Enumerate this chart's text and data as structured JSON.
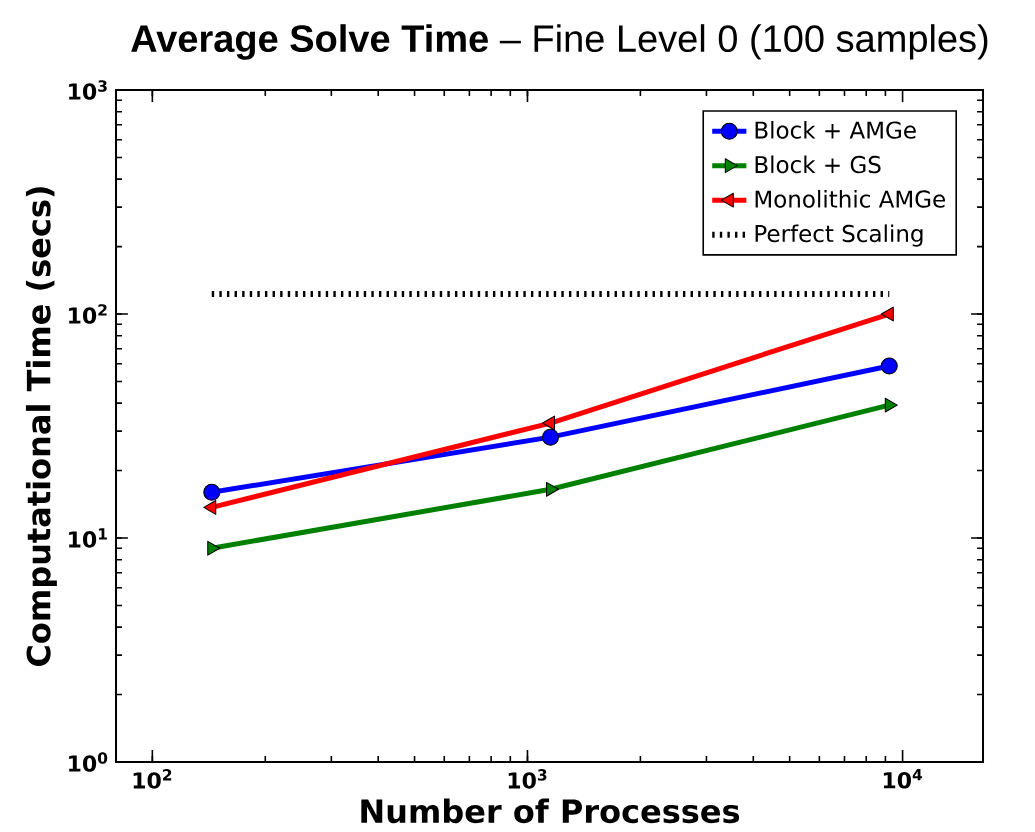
{
  "chart_data": {
    "type": "line",
    "title": "**Average Solve Time** – Fine Level 0 (100 samples)",
    "xlabel": "Number of Processes",
    "ylabel": "Computational Time (secs)",
    "log": "xy",
    "xlim": [
      80,
      16384
    ],
    "ylim": [
      1,
      1000
    ],
    "xticks": [
      {
        "value": 100,
        "label": "10$^{2}$"
      },
      {
        "value": 1000,
        "label": "10$^{3}$"
      },
      {
        "value": 10000,
        "label": "10$^{4}$"
      }
    ],
    "yticks": [
      {
        "value": 1,
        "label": "10$^{0}$"
      },
      {
        "value": 10,
        "label": "10$^{1}$"
      },
      {
        "value": 100,
        "label": "10$^{2}$"
      },
      {
        "value": 1000,
        "label": "10$^{3}$"
      }
    ],
    "legend": "top right",
    "x": [
      144,
      1152,
      9216
    ],
    "series": [
      {
        "name": "Block + AMGe",
        "color": "#0000ff",
        "values": [
          16,
          28.2,
          58.6
        ],
        "marker": "circle"
      },
      {
        "name": "Block + GS",
        "color": "#008000",
        "values": [
          9,
          16.5,
          39.2
        ],
        "marker": "triangle"
      },
      {
        "name": "Monolithic AMGe",
        "color": "#ff0000",
        "values": [
          13.7,
          32.6,
          100
        ],
        "marker": "triangle"
      },
      {
        "name": "Perfect Scaling",
        "color": "#000000",
        "values": [
          123,
          123,
          123
        ],
        "marker": "none",
        "line_style": "dotted"
      }
    ]
  }
}
